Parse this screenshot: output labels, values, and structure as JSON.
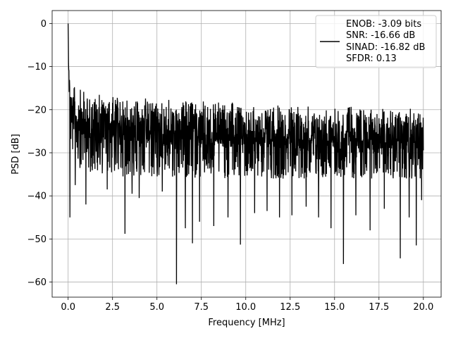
{
  "chart_data": {
    "type": "line",
    "xlabel": "Frequency [MHz]",
    "ylabel": "PSD [dB]",
    "xlim": [
      -0.9,
      21.0
    ],
    "ylim": [
      -63.5,
      3.0
    ],
    "xticks": [
      0.0,
      2.5,
      5.0,
      7.5,
      10.0,
      12.5,
      15.0,
      17.5,
      20.0
    ],
    "xtick_labels": [
      "0.0",
      "2.5",
      "5.0",
      "7.5",
      "10.0",
      "12.5",
      "15.0",
      "17.5",
      "20.0"
    ],
    "yticks": [
      0,
      -10,
      -20,
      -30,
      -40,
      -50,
      -60
    ],
    "ytick_labels": [
      "0",
      "−10",
      "−20",
      "−30",
      "−40",
      "−50",
      "−60"
    ],
    "grid": true,
    "legend_position": "top-right",
    "series": [
      {
        "color": "#000000",
        "legend_lines": [
          "ENOB: -3.09 bits",
          "SNR: -16.66 dB",
          "SINAD: -16.82 dB",
          "SFDR: 0.13"
        ],
        "x": [
          0.0,
          0.03,
          0.06,
          0.1,
          0.15,
          0.2,
          0.3,
          0.5,
          0.8,
          1.0,
          1.5,
          2.0,
          2.5,
          3.0,
          3.5,
          4.0,
          5.0,
          6.0,
          7.0,
          8.0,
          9.0,
          10.0,
          11.0,
          12.0,
          13.0,
          14.0,
          15.0,
          16.0,
          17.0,
          18.0,
          19.0,
          20.0
        ],
        "upper_envelope": [
          -0.2,
          -3.0,
          -6.0,
          -9.0,
          -10.0,
          -9.5,
          -11.0,
          -11.5,
          -12.0,
          -12.5,
          -13.0,
          -13.0,
          -13.5,
          -13.5,
          -14.0,
          -14.0,
          -14.0,
          -14.5,
          -14.5,
          -15.0,
          -15.0,
          -15.5,
          -15.0,
          -16.0,
          -16.0,
          -16.0,
          -16.5,
          -16.0,
          -16.5,
          -16.5,
          -16.5,
          -17.0
        ],
        "typical_lower": [
          -2.0,
          -12.0,
          -18.0,
          -25.0,
          -28.0,
          -30.0,
          -32.0,
          -33.0,
          -34.0,
          -34.0,
          -35.0,
          -35.0,
          -35.0,
          -35.5,
          -35.5,
          -36.0,
          -36.0,
          -36.0,
          -36.0,
          -36.0,
          -36.0,
          -36.0,
          -36.0,
          -36.0,
          -36.0,
          -36.0,
          -36.0,
          -36.0,
          -36.0,
          -36.0,
          -36.0,
          -36.0
        ],
        "deep_dips": [
          {
            "x": 0.1,
            "y": -45.0
          },
          {
            "x": 0.4,
            "y": -37.5
          },
          {
            "x": 1.0,
            "y": -42.0
          },
          {
            "x": 2.2,
            "y": -38.5
          },
          {
            "x": 3.2,
            "y": -48.8
          },
          {
            "x": 3.6,
            "y": -39.5
          },
          {
            "x": 4.0,
            "y": -40.5
          },
          {
            "x": 5.3,
            "y": -39.0
          },
          {
            "x": 6.1,
            "y": -60.5
          },
          {
            "x": 6.6,
            "y": -47.5
          },
          {
            "x": 7.0,
            "y": -51.0
          },
          {
            "x": 7.4,
            "y": -46.0
          },
          {
            "x": 8.2,
            "y": -47.0
          },
          {
            "x": 9.0,
            "y": -45.0
          },
          {
            "x": 9.7,
            "y": -51.3
          },
          {
            "x": 10.5,
            "y": -44.0
          },
          {
            "x": 11.2,
            "y": -43.5
          },
          {
            "x": 11.9,
            "y": -45.0
          },
          {
            "x": 12.6,
            "y": -44.5
          },
          {
            "x": 13.4,
            "y": -42.5
          },
          {
            "x": 14.1,
            "y": -45.0
          },
          {
            "x": 14.8,
            "y": -47.5
          },
          {
            "x": 15.5,
            "y": -55.8
          },
          {
            "x": 16.2,
            "y": -44.5
          },
          {
            "x": 17.0,
            "y": -48.0
          },
          {
            "x": 17.8,
            "y": -43.0
          },
          {
            "x": 18.7,
            "y": -54.5
          },
          {
            "x": 19.2,
            "y": -45.0
          },
          {
            "x": 19.6,
            "y": -51.5
          },
          {
            "x": 19.9,
            "y": -41.0
          }
        ]
      }
    ]
  }
}
